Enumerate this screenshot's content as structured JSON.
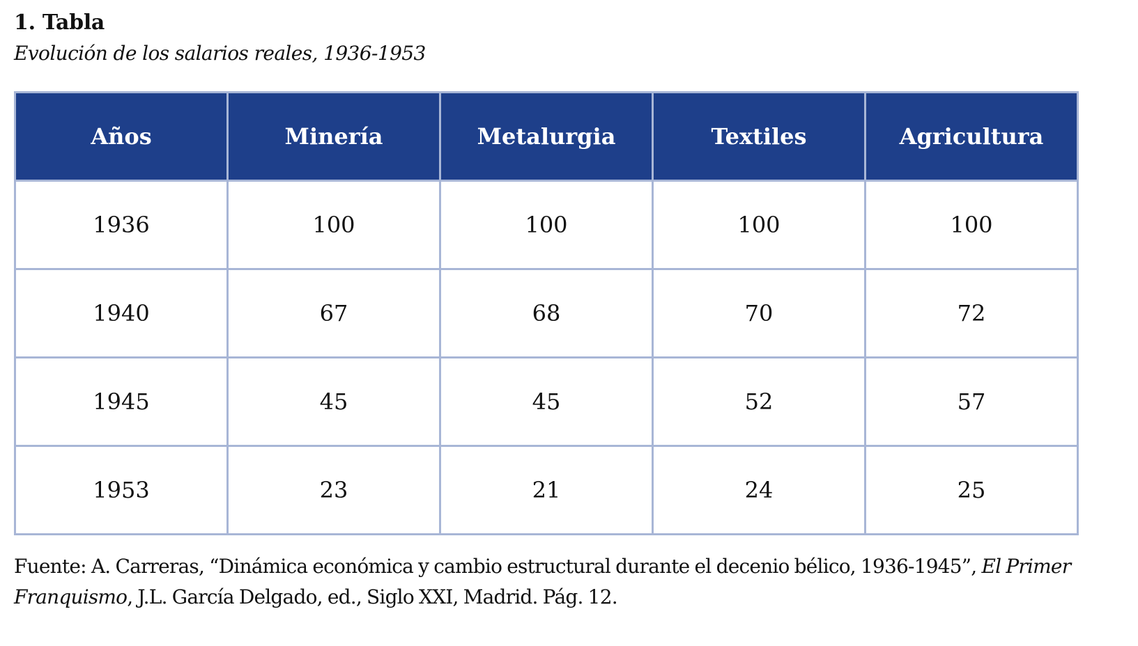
{
  "heading": "1. Tabla",
  "subheading": "Evolución de los salarios reales, 1936-1953",
  "table": {
    "columns": [
      "Años",
      "Minería",
      "Metalurgia",
      "Textiles",
      "Agricultura"
    ],
    "rows": [
      [
        "1936",
        "100",
        "100",
        "100",
        "100"
      ],
      [
        "1940",
        "67",
        "68",
        "70",
        "72"
      ],
      [
        "1945",
        "45",
        "45",
        "52",
        "57"
      ],
      [
        "1953",
        "23",
        "21",
        "24",
        "25"
      ]
    ]
  },
  "colors": {
    "header_bg": "#1e3f8a",
    "border": "#a8b6d6"
  },
  "source": {
    "prefix": "Fuente:  A. Carreras, “Dinámica económica y cambio estructural durante el decenio bélico, 1936-1945”, ",
    "title": "El Primer Franquismo",
    "suffix": ", J.L. García Delgado, ed., Siglo XXI, Madrid. Pág. 12."
  }
}
